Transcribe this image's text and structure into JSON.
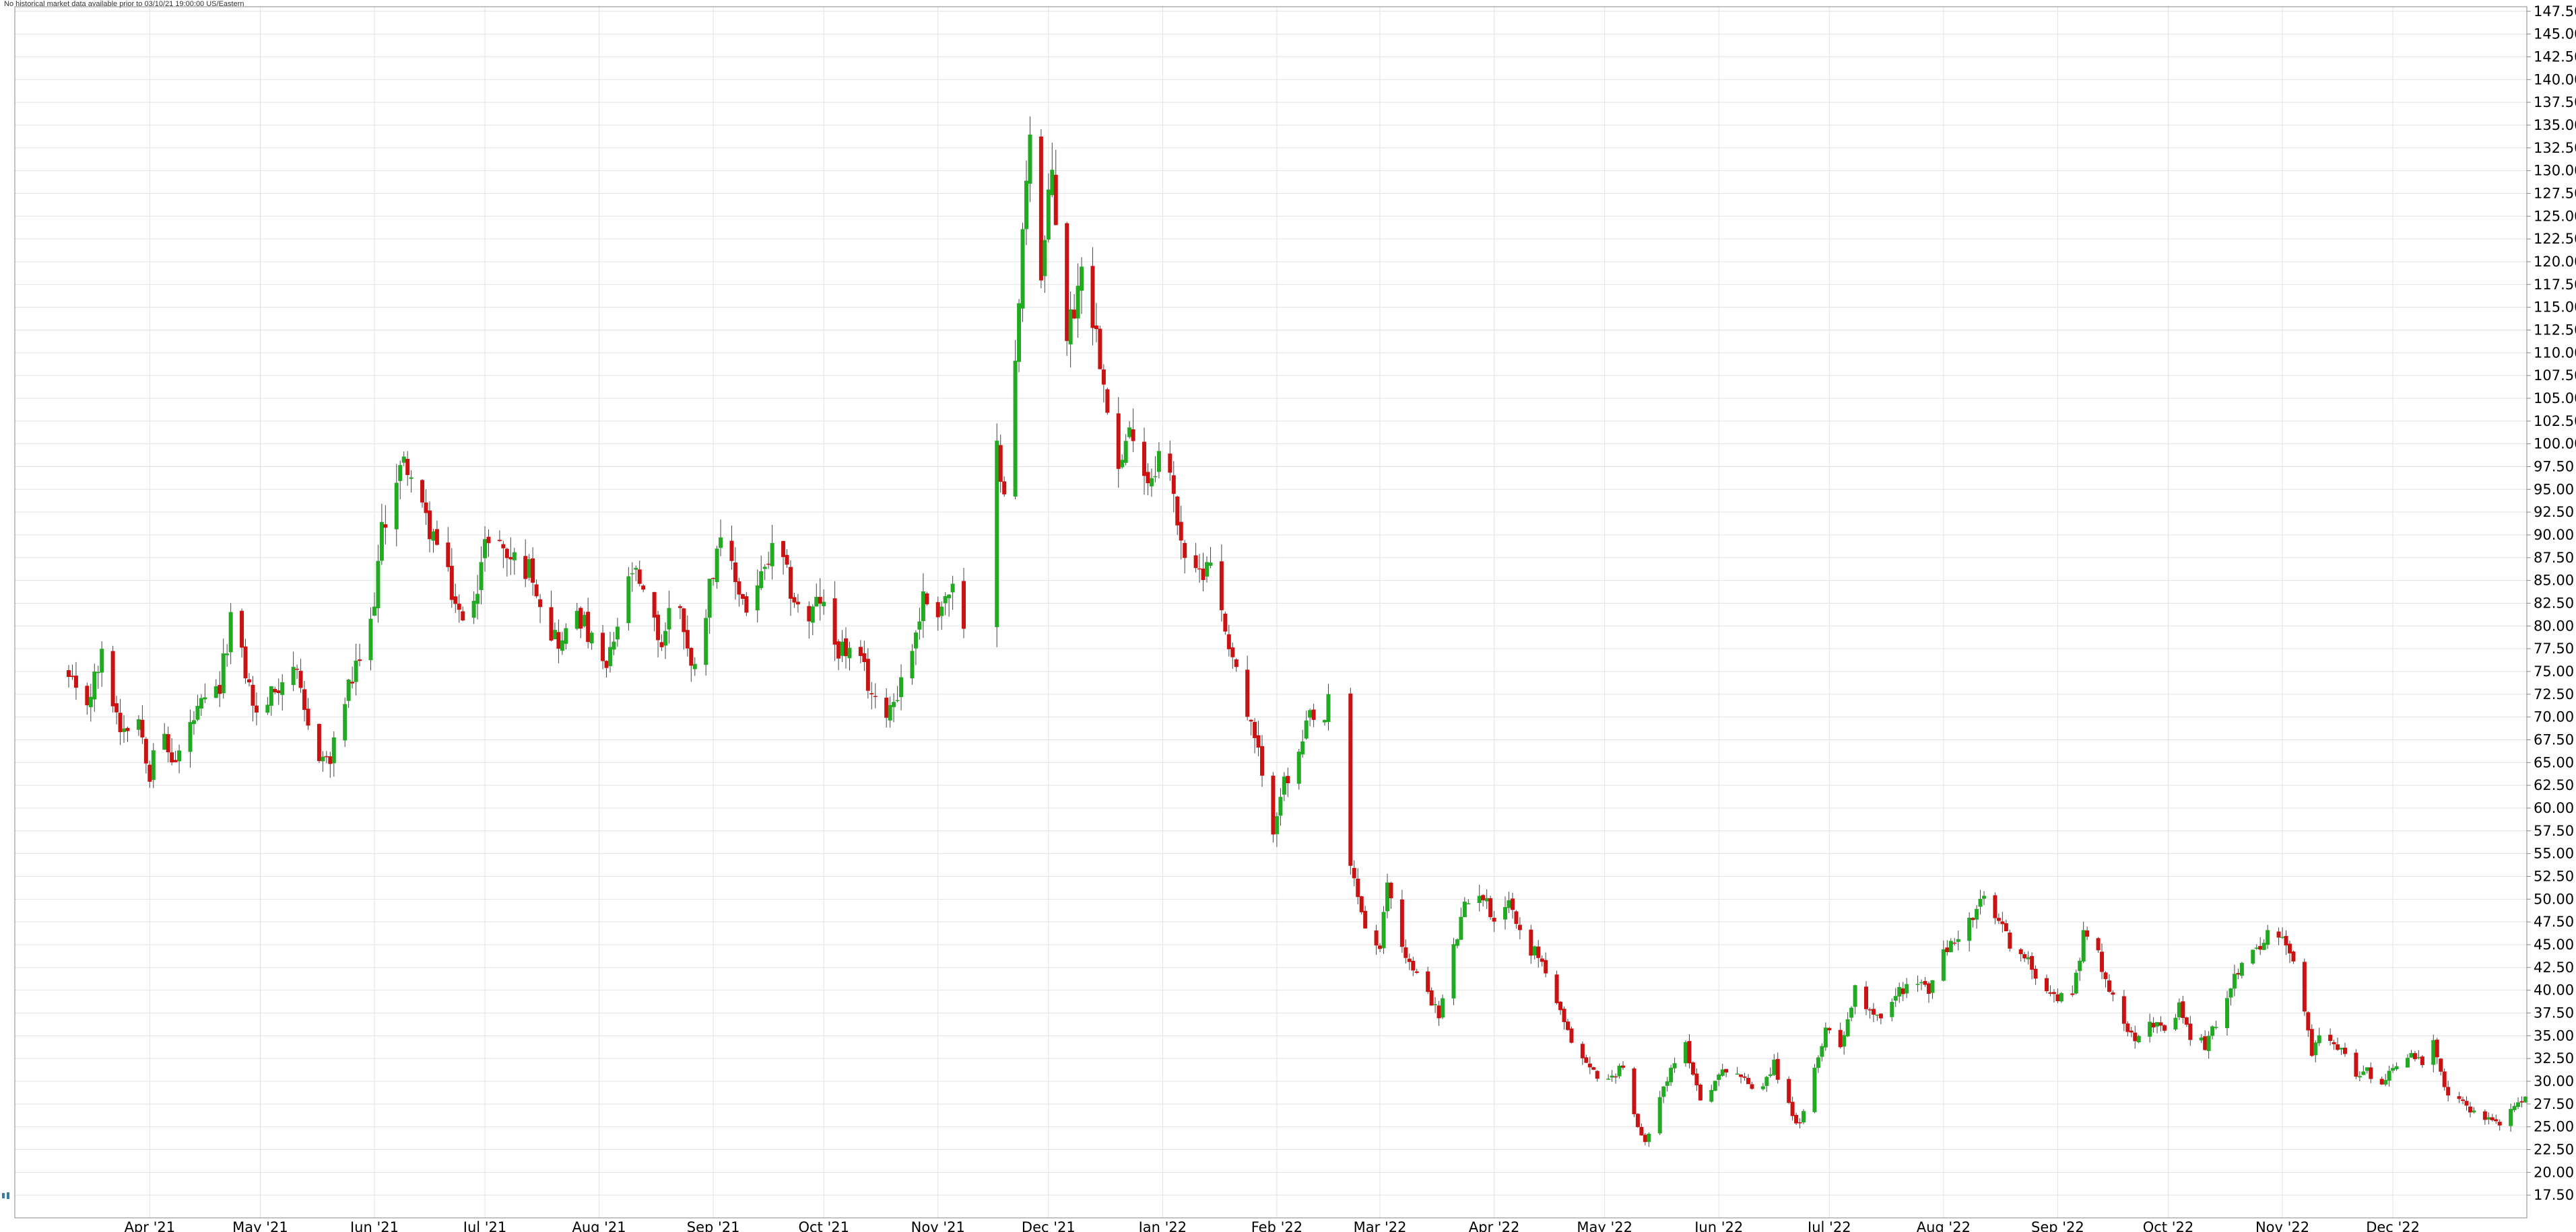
{
  "notice": "No historical market data available prior to 03/10/21 19:00:00 US/Eastern",
  "colors": {
    "up": "#22aa22",
    "down": "#cc1111",
    "wick": "#444444",
    "grid": "#e3e3e3",
    "axis": "#888888",
    "background": "#ffffff"
  },
  "icons": {
    "scroll_handle": "drag-handle-icon"
  },
  "chart_data": {
    "type": "candlestick",
    "title": "",
    "xlabel": "",
    "ylabel": "",
    "grid": true,
    "y_axis_side": "right",
    "ylim": [
      15,
      148
    ],
    "yticks": [
      17.5,
      20,
      22.5,
      25,
      27.5,
      30,
      32.5,
      35,
      37.5,
      40,
      42.5,
      45,
      47.5,
      50,
      52.5,
      55,
      57.5,
      60,
      62.5,
      65,
      67.5,
      70,
      72.5,
      75,
      77.5,
      80,
      82.5,
      85,
      87.5,
      90,
      92.5,
      95,
      97.5,
      100,
      102.5,
      105,
      107.5,
      110,
      112.5,
      115,
      117.5,
      120,
      122.5,
      125,
      127.5,
      130,
      132.5,
      135,
      137.5,
      140,
      142.5,
      145,
      147.5
    ],
    "ytick_labels": [
      "17.50",
      "20.00",
      "22.50",
      "25.00",
      "27.50",
      "30.00",
      "32.50",
      "35.00",
      "37.50",
      "40.00",
      "42.50",
      "45.00",
      "47.50",
      "50.00",
      "52.50",
      "55.00",
      "57.50",
      "60.00",
      "62.50",
      "65.00",
      "67.50",
      "70.00",
      "72.50",
      "75.00",
      "77.50",
      "80.00",
      "82.50",
      "85.00",
      "87.50",
      "90.00",
      "92.50",
      "95.00",
      "97.50",
      "100.00",
      "102.50",
      "105.00",
      "107.50",
      "110.00",
      "112.50",
      "115.00",
      "117.50",
      "120.00",
      "122.50",
      "125.00",
      "127.50",
      "130.00",
      "132.50",
      "135.00",
      "137.50",
      "140.00",
      "142.50",
      "145.00",
      "147.50"
    ],
    "x_range": [
      "2021-03-10",
      "2023-01-06"
    ],
    "xticks": [
      {
        "date": "2021-04-01",
        "label": "Apr '21"
      },
      {
        "date": "2021-05-01",
        "label": "May '21"
      },
      {
        "date": "2021-06-01",
        "label": "Jun '21"
      },
      {
        "date": "2021-07-01",
        "label": "Jul '21"
      },
      {
        "date": "2021-08-01",
        "label": "Aug '21"
      },
      {
        "date": "2021-09-01",
        "label": "Sep '21"
      },
      {
        "date": "2021-10-01",
        "label": "Oct '21"
      },
      {
        "date": "2021-11-01",
        "label": "Nov '21"
      },
      {
        "date": "2021-12-01",
        "label": "Dec '21"
      },
      {
        "date": "2022-01-01",
        "label": "Jan '22"
      },
      {
        "date": "2022-02-01",
        "label": "Feb '22"
      },
      {
        "date": "2022-03-01",
        "label": "Mar '22"
      },
      {
        "date": "2022-04-01",
        "label": "Apr '22"
      },
      {
        "date": "2022-05-01",
        "label": "May '22"
      },
      {
        "date": "2022-06-01",
        "label": "Jun '22"
      },
      {
        "date": "2022-07-01",
        "label": "Jul '22"
      },
      {
        "date": "2022-08-01",
        "label": "Aug '22"
      },
      {
        "date": "2022-09-01",
        "label": "Sep '22"
      },
      {
        "date": "2022-10-01",
        "label": "Oct '22"
      },
      {
        "date": "2022-11-01",
        "label": "Nov '22"
      },
      {
        "date": "2022-12-01",
        "label": "Dec '22"
      }
    ],
    "gaps": [
      {
        "from": "2021-11-09",
        "to": "2021-11-17"
      },
      {
        "from": "2022-02-16",
        "to": "2022-02-19"
      }
    ],
    "close_path": [
      [
        "2021-03-10",
        74.0
      ],
      [
        "2021-03-14",
        70.5
      ],
      [
        "2021-03-19",
        76.5
      ],
      [
        "2021-03-24",
        69.0
      ],
      [
        "2021-03-29",
        70.0
      ],
      [
        "2021-04-01",
        64.0
      ],
      [
        "2021-04-03",
        70.0
      ],
      [
        "2021-04-06",
        66.0
      ],
      [
        "2021-04-08",
        65.0
      ],
      [
        "2021-04-12",
        69.0
      ],
      [
        "2021-04-15",
        71.0
      ],
      [
        "2021-04-20",
        73.0
      ],
      [
        "2021-04-23",
        81.0
      ],
      [
        "2021-04-27",
        75.0
      ],
      [
        "2021-04-30",
        70.0
      ],
      [
        "2021-05-05",
        73.0
      ],
      [
        "2021-05-10",
        76.0
      ],
      [
        "2021-05-13",
        70.0
      ],
      [
        "2021-05-17",
        66.0
      ],
      [
        "2021-05-20",
        65.0
      ],
      [
        "2021-05-24",
        72.0
      ],
      [
        "2021-05-27",
        75.0
      ],
      [
        "2021-05-31",
        80.0
      ],
      [
        "2021-06-03",
        90.0
      ],
      [
        "2021-06-06",
        96.0
      ],
      [
        "2021-06-10",
        98.0
      ],
      [
        "2021-06-13",
        93.0
      ],
      [
        "2021-06-17",
        90.0
      ],
      [
        "2021-06-21",
        85.0
      ],
      [
        "2021-06-25",
        80.0
      ],
      [
        "2021-06-29",
        85.0
      ],
      [
        "2021-07-03",
        92.0
      ],
      [
        "2021-07-06",
        88.0
      ],
      [
        "2021-07-10",
        87.0
      ],
      [
        "2021-07-14",
        86.0
      ],
      [
        "2021-07-18",
        80.0
      ],
      [
        "2021-07-22",
        78.0
      ],
      [
        "2021-07-26",
        82.0
      ],
      [
        "2021-07-30",
        78.0
      ],
      [
        "2021-08-03",
        75.0
      ],
      [
        "2021-08-06",
        80.0
      ],
      [
        "2021-08-10",
        86.0
      ],
      [
        "2021-08-14",
        82.0
      ],
      [
        "2021-08-18",
        78.0
      ],
      [
        "2021-08-22",
        85.0
      ],
      [
        "2021-08-26",
        75.0
      ],
      [
        "2021-08-30",
        82.0
      ],
      [
        "2021-09-02",
        89.0
      ],
      [
        "2021-09-06",
        86.0
      ],
      [
        "2021-09-10",
        82.0
      ],
      [
        "2021-09-14",
        85.0
      ],
      [
        "2021-09-18",
        89.0
      ],
      [
        "2021-09-22",
        84.0
      ],
      [
        "2021-09-26",
        80.0
      ],
      [
        "2021-09-30",
        83.0
      ],
      [
        "2021-10-04",
        78.0
      ],
      [
        "2021-10-08",
        77.0
      ],
      [
        "2021-10-12",
        75.0
      ],
      [
        "2021-10-16",
        70.0
      ],
      [
        "2021-10-20",
        72.0
      ],
      [
        "2021-10-24",
        76.0
      ],
      [
        "2021-10-28",
        83.0
      ],
      [
        "2021-11-01",
        82.0
      ],
      [
        "2021-11-05",
        84.0
      ],
      [
        "2021-11-09",
        77.0
      ],
      [
        "2021-11-17",
        99.0
      ],
      [
        "2021-11-19",
        96.0
      ],
      [
        "2021-11-22",
        108.0
      ],
      [
        "2021-11-25",
        130.0
      ],
      [
        "2021-11-27",
        141.0
      ],
      [
        "2021-11-29",
        118.0
      ],
      [
        "2021-12-02",
        130.0
      ],
      [
        "2021-12-04",
        120.0
      ],
      [
        "2021-12-06",
        112.0
      ],
      [
        "2021-12-09",
        117.0
      ],
      [
        "2021-12-11",
        125.0
      ],
      [
        "2021-12-13",
        114.0
      ],
      [
        "2021-12-16",
        108.0
      ],
      [
        "2021-12-20",
        97.0
      ],
      [
        "2021-12-24",
        102.0
      ],
      [
        "2021-12-28",
        96.0
      ],
      [
        "2022-01-01",
        100.0
      ],
      [
        "2022-01-04",
        94.0
      ],
      [
        "2022-01-07",
        88.0
      ],
      [
        "2022-01-10",
        85.0
      ],
      [
        "2022-01-14",
        88.0
      ],
      [
        "2022-01-17",
        81.0
      ],
      [
        "2022-01-20",
        77.0
      ],
      [
        "2022-01-24",
        70.0
      ],
      [
        "2022-01-27",
        66.0
      ],
      [
        "2022-01-30",
        56.0
      ],
      [
        "2022-02-02",
        62.0
      ],
      [
        "2022-02-06",
        64.0
      ],
      [
        "2022-02-10",
        70.0
      ],
      [
        "2022-02-13",
        68.0
      ],
      [
        "2022-02-16",
        73.0
      ],
      [
        "2022-02-19",
        56.0
      ],
      [
        "2022-02-22",
        52.0
      ],
      [
        "2022-02-25",
        47.0
      ],
      [
        "2022-03-01",
        44.0
      ],
      [
        "2022-03-03",
        52.0
      ],
      [
        "2022-03-06",
        46.0
      ],
      [
        "2022-03-10",
        42.0
      ],
      [
        "2022-03-14",
        40.0
      ],
      [
        "2022-03-17",
        37.0
      ],
      [
        "2022-03-20",
        43.0
      ],
      [
        "2022-03-24",
        49.0
      ],
      [
        "2022-03-28",
        51.0
      ],
      [
        "2022-04-01",
        48.0
      ],
      [
        "2022-04-05",
        50.0
      ],
      [
        "2022-04-09",
        45.0
      ],
      [
        "2022-04-13",
        44.0
      ],
      [
        "2022-04-17",
        40.0
      ],
      [
        "2022-04-20",
        36.0
      ],
      [
        "2022-04-24",
        33.0
      ],
      [
        "2022-04-28",
        31.0
      ],
      [
        "2022-05-02",
        30.0
      ],
      [
        "2022-05-06",
        32.0
      ],
      [
        "2022-05-09",
        26.0
      ],
      [
        "2022-05-12",
        23.0
      ],
      [
        "2022-05-15",
        28.0
      ],
      [
        "2022-05-19",
        31.0
      ],
      [
        "2022-05-23",
        34.0
      ],
      [
        "2022-05-27",
        28.0
      ],
      [
        "2022-05-31",
        30.0
      ],
      [
        "2022-06-04",
        32.0
      ],
      [
        "2022-06-08",
        30.0
      ],
      [
        "2022-06-12",
        29.0
      ],
      [
        "2022-06-16",
        32.0
      ],
      [
        "2022-06-19",
        28.0
      ],
      [
        "2022-06-23",
        25.0
      ],
      [
        "2022-06-27",
        31.0
      ],
      [
        "2022-06-30",
        36.0
      ],
      [
        "2022-07-04",
        34.0
      ],
      [
        "2022-07-08",
        40.0
      ],
      [
        "2022-07-12",
        38.0
      ],
      [
        "2022-07-16",
        37.0
      ],
      [
        "2022-07-20",
        40.0
      ],
      [
        "2022-07-24",
        41.0
      ],
      [
        "2022-07-28",
        40.0
      ],
      [
        "2022-08-01",
        44.0
      ],
      [
        "2022-08-05",
        46.0
      ],
      [
        "2022-08-09",
        48.0
      ],
      [
        "2022-08-12",
        50.0
      ],
      [
        "2022-08-15",
        48.0
      ],
      [
        "2022-08-18",
        46.0
      ],
      [
        "2022-08-21",
        44.0
      ],
      [
        "2022-08-24",
        43.0
      ],
      [
        "2022-08-28",
        41.0
      ],
      [
        "2022-09-01",
        39.0
      ],
      [
        "2022-09-05",
        40.0
      ],
      [
        "2022-09-08",
        46.0
      ],
      [
        "2022-09-12",
        44.0
      ],
      [
        "2022-09-15",
        40.0
      ],
      [
        "2022-09-18",
        37.0
      ],
      [
        "2022-09-22",
        35.0
      ],
      [
        "2022-09-26",
        37.0
      ],
      [
        "2022-09-30",
        35.0
      ],
      [
        "2022-10-04",
        38.0
      ],
      [
        "2022-10-07",
        35.0
      ],
      [
        "2022-10-11",
        34.0
      ],
      [
        "2022-10-15",
        37.0
      ],
      [
        "2022-10-19",
        42.0
      ],
      [
        "2022-10-23",
        43.0
      ],
      [
        "2022-10-27",
        46.0
      ],
      [
        "2022-10-31",
        46.0
      ],
      [
        "2022-11-03",
        44.0
      ],
      [
        "2022-11-06",
        40.0
      ],
      [
        "2022-11-09",
        33.0
      ],
      [
        "2022-11-12",
        36.0
      ],
      [
        "2022-11-16",
        34.0
      ],
      [
        "2022-11-20",
        31.0
      ],
      [
        "2022-11-24",
        31.0
      ],
      [
        "2022-11-28",
        30.0
      ],
      [
        "2022-12-02",
        32.0
      ],
      [
        "2022-12-06",
        33.0
      ],
      [
        "2022-12-09",
        32.0
      ],
      [
        "2022-12-12",
        34.0
      ],
      [
        "2022-12-15",
        29.0
      ],
      [
        "2022-12-18",
        28.0
      ],
      [
        "2022-12-22",
        27.0
      ],
      [
        "2022-12-26",
        26.0
      ],
      [
        "2022-12-30",
        25.5
      ],
      [
        "2023-01-03",
        27.0
      ],
      [
        "2023-01-06",
        28.0
      ]
    ],
    "series": [
      {
        "type": "ohlc",
        "up_color": "#22aa22",
        "down_color": "#cc1111",
        "interval": "daily"
      }
    ]
  }
}
